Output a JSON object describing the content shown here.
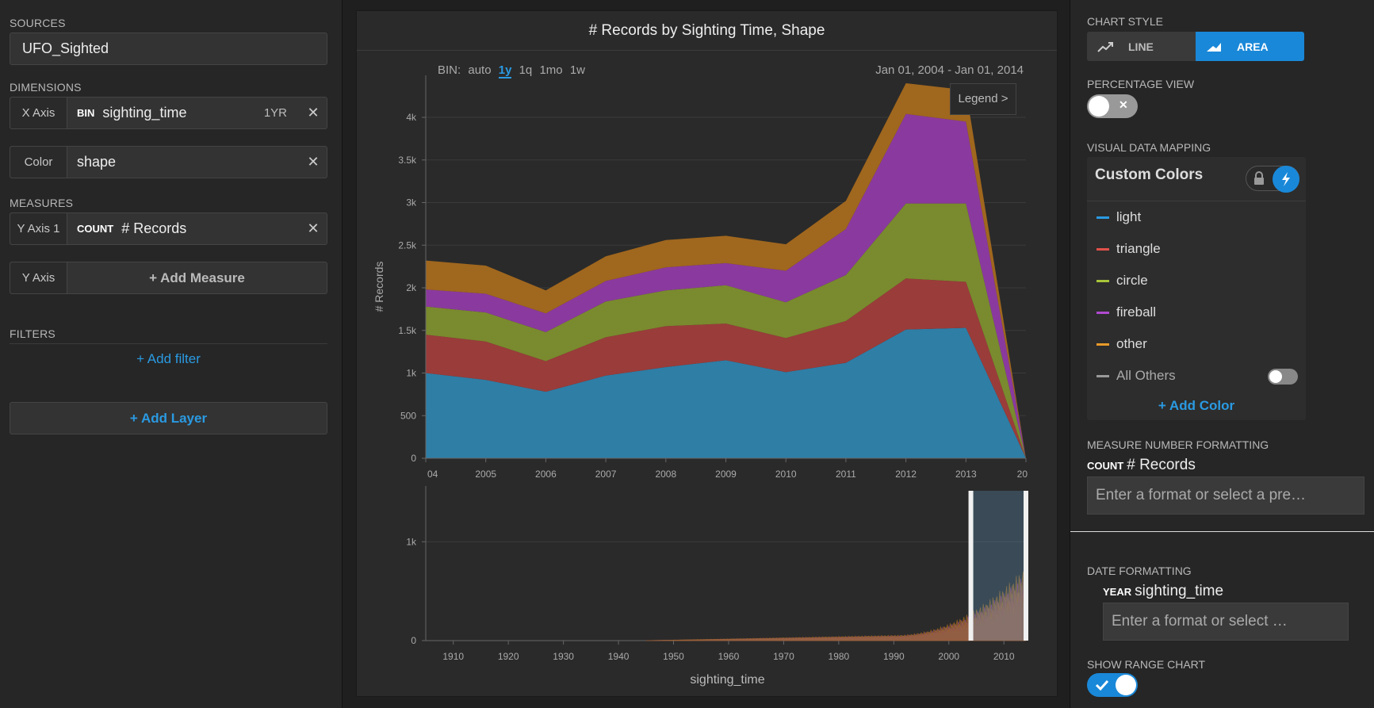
{
  "left": {
    "sources_label": "SOURCES",
    "source_value": "UFO_Sighted",
    "dimensions_label": "DIMENSIONS",
    "x_axis": {
      "tag": "X Axis",
      "kind": "BIN",
      "field": "sighting_time",
      "extra": "1YR"
    },
    "color": {
      "tag": "Color",
      "field": "shape"
    },
    "measures_label": "MEASURES",
    "y_axis_1": {
      "tag": "Y Axis 1",
      "kind": "COUNT",
      "field": "# Records"
    },
    "y_axis": {
      "tag": "Y Axis",
      "add_label": "+ Add Measure"
    },
    "filters_label": "FILTERS",
    "add_filter": "+ Add filter",
    "add_layer": "+ Add Layer",
    "close_glyph": "✕"
  },
  "center": {
    "title": "# Records by Sighting Time, Shape",
    "bin": {
      "label": "BIN:",
      "options": [
        "auto",
        "1y",
        "1q",
        "1mo",
        "1w"
      ],
      "active": "1y"
    },
    "range": "Jan 01, 2004 - Jan 01, 2014",
    "legend_button": "Legend >",
    "range_chart_xlabel": "sighting_time"
  },
  "chart_data": [
    {
      "type": "area",
      "stacked": true,
      "x": [
        "2004",
        "2005",
        "2006",
        "2007",
        "2008",
        "2009",
        "2010",
        "2011",
        "2012",
        "2013",
        "2014"
      ],
      "x_tick_labels": [
        "04",
        "2005",
        "2006",
        "2007",
        "2008",
        "2009",
        "2010",
        "2011",
        "2012",
        "2013",
        "20"
      ],
      "ylabel": "# Records",
      "ylim": [
        0,
        4400
      ],
      "y_ticks": [
        0,
        500,
        1000,
        1500,
        2000,
        2500,
        3000,
        3500,
        4000
      ],
      "y_tick_labels": [
        "0",
        "500",
        "1k",
        "1.5k",
        "2k",
        "2.5k",
        "3k",
        "3.5k",
        "4k"
      ],
      "grid": true,
      "series": [
        {
          "name": "light",
          "color": "#2e7ea6",
          "values": [
            1000,
            920,
            780,
            970,
            1070,
            1150,
            1010,
            1120,
            1510,
            1530,
            0
          ]
        },
        {
          "name": "triangle",
          "color": "#9a3c3a",
          "values": [
            450,
            450,
            360,
            450,
            480,
            430,
            400,
            490,
            600,
            540,
            0
          ]
        },
        {
          "name": "circle",
          "color": "#7a8a2e",
          "values": [
            330,
            340,
            340,
            420,
            420,
            450,
            420,
            540,
            880,
            920,
            0
          ]
        },
        {
          "name": "fireball",
          "color": "#8a3a9e",
          "values": [
            200,
            220,
            220,
            240,
            270,
            260,
            370,
            540,
            1050,
            960,
            0
          ]
        },
        {
          "name": "other",
          "color": "#a0671e",
          "values": [
            340,
            330,
            270,
            290,
            320,
            320,
            310,
            330,
            360,
            370,
            0
          ]
        }
      ]
    },
    {
      "type": "area",
      "role": "range-chart",
      "xlabel": "sighting_time",
      "x_tick_labels": [
        "1910",
        "1920",
        "1930",
        "1940",
        "1950",
        "1960",
        "1970",
        "1980",
        "1990",
        "2000",
        "2010"
      ],
      "xlim": [
        1905,
        2014
      ],
      "ylim": [
        0,
        1500
      ],
      "y_ticks": [
        0,
        1000
      ],
      "y_tick_labels": [
        "0",
        "1k"
      ],
      "brush_range": [
        2004,
        2014
      ]
    }
  ],
  "right": {
    "chart_style_label": "CHART STYLE",
    "style_line": "LINE",
    "style_area": "AREA",
    "percentage_label": "PERCENTAGE VIEW",
    "vdm_label": "VISUAL DATA MAPPING",
    "custom_colors": "Custom Colors",
    "colors": [
      {
        "name": "light",
        "color": "#2a9ae2"
      },
      {
        "name": "triangle",
        "color": "#e0504a"
      },
      {
        "name": "circle",
        "color": "#a8c43a"
      },
      {
        "name": "fireball",
        "color": "#b04ad0"
      },
      {
        "name": "other",
        "color": "#e89a2a"
      },
      {
        "name": "All Others",
        "color": "#999999"
      }
    ],
    "add_color": "+ Add Color",
    "measure_fmt_label": "MEASURE NUMBER FORMATTING",
    "measure_fmt_kind": "COUNT",
    "measure_fmt_field": "# Records",
    "measure_fmt_placeholder": "Enter a format or select a pre…",
    "date_fmt_label": "DATE FORMATTING",
    "date_fmt_kind": "YEAR",
    "date_fmt_field": "sighting_time",
    "date_fmt_placeholder": "Enter a format or select …",
    "range_chart_label": "SHOW RANGE CHART",
    "accent": "#1a88d8"
  }
}
